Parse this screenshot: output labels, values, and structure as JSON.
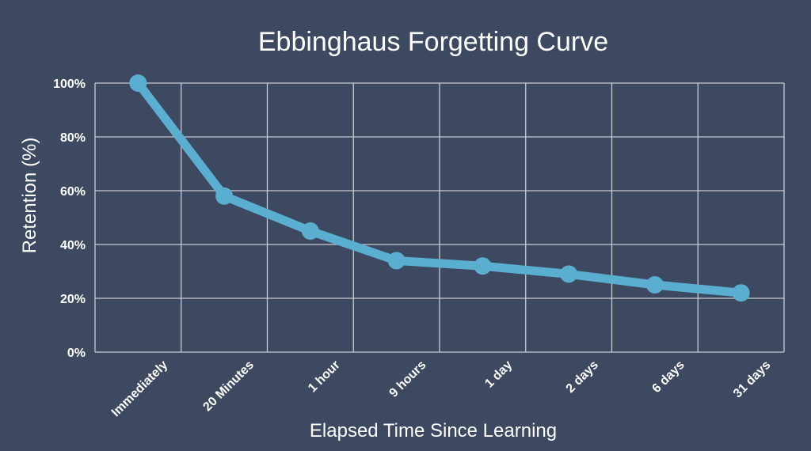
{
  "chart_data": {
    "type": "line",
    "title": "Ebbinghaus Forgetting Curve",
    "xlabel": "Elapsed Time Since Learning",
    "ylabel": "Retention (%)",
    "categories": [
      "Immediately",
      "20 Minutes",
      "1 hour",
      "9 hours",
      "1 day",
      "2 days",
      "6 days",
      "31 days"
    ],
    "values": [
      100,
      58,
      45,
      34,
      32,
      29,
      25,
      22
    ],
    "ylim": [
      0,
      100
    ],
    "yticks": [
      0,
      20,
      40,
      60,
      80,
      100
    ],
    "ytick_labels": [
      "0%",
      "20%",
      "40%",
      "60%",
      "80%",
      "100%"
    ],
    "grid": true,
    "colors": {
      "background": "#3c4960",
      "line": "#5aaed0",
      "grid": "#c8ccd4",
      "text": "#ffffff"
    }
  }
}
